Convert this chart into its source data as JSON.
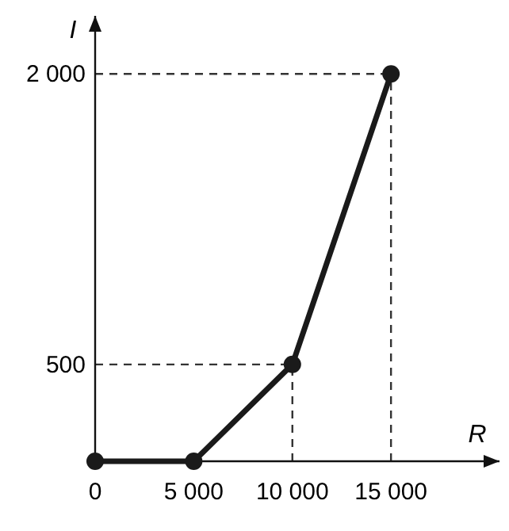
{
  "chart_data": {
    "type": "line",
    "xlabel": "R",
    "ylabel": "I",
    "x": [
      0,
      5000,
      10000,
      15000
    ],
    "series": [
      {
        "color": "#1a1a1a",
        "values": [
          0,
          0,
          500,
          2000
        ]
      }
    ],
    "xlim": [
      0,
      20500
    ],
    "ylim": [
      0,
      2300
    ],
    "xticks": [
      0,
      {
        "value": 5000,
        "label": "5 000"
      },
      {
        "value": 10000,
        "label": "10 000"
      },
      {
        "value": 15000,
        "label": "15 000"
      }
    ],
    "yticks": [
      500,
      {
        "value": 2000,
        "label": "2 000"
      }
    ],
    "marker": "circle",
    "line_style": "solid",
    "ref_lines": [
      {
        "axis": "y",
        "value": 500,
        "line_style": "dashed",
        "color": "#333333"
      },
      {
        "axis": "y",
        "value": 2000,
        "line_style": "dashed",
        "color": "#333333"
      },
      {
        "axis": "x",
        "value": 10000,
        "line_style": "dashed",
        "color": "#333333"
      },
      {
        "axis": "x",
        "value": 15000,
        "line_style": "dashed",
        "color": "#333333"
      }
    ]
  }
}
